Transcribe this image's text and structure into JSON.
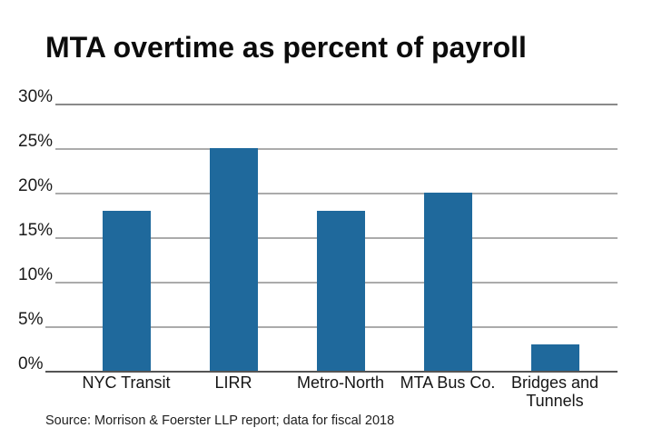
{
  "chart_data": {
    "type": "bar",
    "title": "MTA overtime as percent of payroll",
    "categories": [
      "NYC Transit",
      "LIRR",
      "Metro-North",
      "MTA Bus Co.",
      "Bridges and Tunnels"
    ],
    "values": [
      18,
      25,
      18,
      20,
      3
    ],
    "unit": "%",
    "xlabel": "",
    "ylabel": "",
    "ylim": [
      0,
      30
    ],
    "yticks": [
      30,
      25,
      20,
      15,
      10,
      5,
      0
    ],
    "ytick_labels": [
      "30%",
      "25%",
      "20%",
      "15%",
      "10%",
      "5%",
      "0%"
    ],
    "grid": "horizontal",
    "legend": "none",
    "source": "Source: Morrison & Foerster LLP report; data for fiscal 2018",
    "bar_color": "#1f699c",
    "gridline_color": "#ababab",
    "top_gridline_color": "#8a8a8a",
    "axis_line_color": "#545454"
  }
}
